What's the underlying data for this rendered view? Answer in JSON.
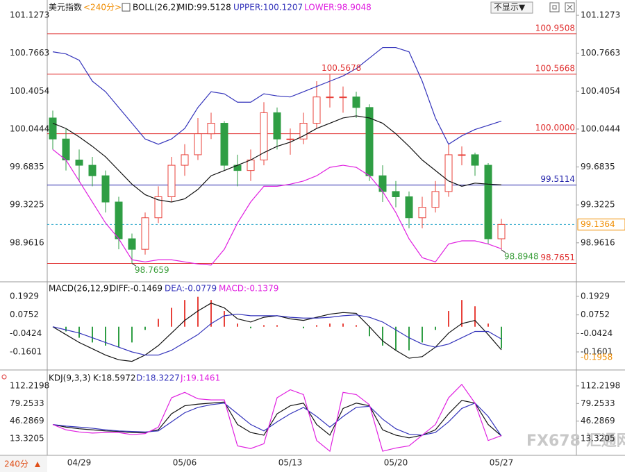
{
  "ui": {
    "button": "不显示▼",
    "period_tab": "240分",
    "watermark": "FX678 汇通网"
  },
  "chart_data": [
    {
      "type": "candlestick",
      "title": "美元指数",
      "period": "<240分>",
      "indicator": "BOLL(26,2)",
      "categories": [
        null,
        null,
        "04/29",
        null,
        null,
        null,
        null,
        null,
        null,
        null,
        "05/06",
        null,
        null,
        null,
        null,
        null,
        null,
        null,
        "05/13",
        null,
        null,
        null,
        null,
        null,
        null,
        null,
        "05/20",
        null,
        null,
        null,
        null,
        null,
        null,
        null,
        "05/27"
      ],
      "open": [
        100.15,
        99.95,
        99.75,
        99.7,
        99.6,
        99.35,
        99.0,
        98.9,
        99.2,
        99.4,
        99.7,
        99.8,
        100.0,
        100.1,
        99.7,
        99.65,
        99.75,
        100.2,
        99.95,
        99.95,
        100.1,
        100.35,
        100.35,
        100.35,
        100.25,
        99.6,
        99.45,
        99.4,
        99.2,
        99.3,
        99.45,
        99.8,
        99.8,
        99.7,
        99.0
      ],
      "high": [
        100.22,
        100.05,
        99.85,
        99.78,
        99.65,
        99.4,
        99.05,
        99.25,
        99.5,
        99.78,
        99.9,
        100.15,
        100.2,
        100.12,
        99.8,
        99.85,
        100.3,
        100.25,
        100.05,
        100.2,
        100.5,
        100.5678,
        100.45,
        100.4,
        100.28,
        99.7,
        99.55,
        99.45,
        99.4,
        99.55,
        99.9,
        99.88,
        99.82,
        99.72,
        99.19
      ],
      "low": [
        99.85,
        99.65,
        99.55,
        99.5,
        99.25,
        98.9,
        98.7659,
        98.85,
        99.15,
        99.35,
        99.6,
        99.75,
        99.95,
        99.65,
        99.5,
        99.55,
        99.7,
        99.85,
        99.8,
        99.9,
        100.05,
        100.25,
        100.2,
        100.15,
        99.55,
        99.35,
        99.3,
        99.1,
        99.1,
        99.25,
        99.4,
        99.7,
        99.6,
        98.95,
        98.8948
      ],
      "close": [
        99.95,
        99.75,
        99.7,
        99.6,
        99.35,
        99.0,
        98.9,
        99.2,
        99.4,
        99.7,
        99.8,
        100.0,
        100.1,
        99.7,
        99.65,
        99.75,
        100.2,
        99.95,
        99.95,
        100.1,
        100.35,
        100.35,
        100.35,
        100.25,
        99.6,
        99.45,
        99.4,
        99.2,
        99.3,
        99.45,
        99.8,
        99.8,
        99.7,
        99.0,
        99.1364
      ],
      "up_color": "#e8413a",
      "down_color": "#2f9e44",
      "series": [
        {
          "name": "MID:99.5128",
          "color": "#111111",
          "values": [
            100.1,
            100.05,
            99.97,
            99.88,
            99.78,
            99.65,
            99.52,
            99.42,
            99.37,
            99.35,
            99.38,
            99.47,
            99.6,
            99.65,
            99.7,
            99.75,
            99.82,
            99.88,
            99.92,
            99.98,
            100.05,
            100.1,
            100.15,
            100.17,
            100.15,
            100.1,
            100.0,
            99.88,
            99.75,
            99.65,
            99.55,
            99.5,
            99.53,
            99.52,
            99.5128
          ]
        },
        {
          "name": "UPPER:100.1207",
          "color": "#3333bb",
          "values": [
            100.78,
            100.76,
            100.7,
            100.5,
            100.4,
            100.25,
            100.1,
            99.95,
            99.9,
            99.95,
            100.05,
            100.25,
            100.4,
            100.38,
            100.3,
            100.3,
            100.38,
            100.36,
            100.35,
            100.4,
            100.45,
            100.5,
            100.55,
            100.62,
            100.72,
            100.82,
            100.82,
            100.78,
            100.5,
            100.15,
            99.9,
            99.98,
            100.04,
            100.08,
            100.1207
          ]
        },
        {
          "name": "LOWER:98.9048",
          "color": "#e020e0",
          "values": [
            99.85,
            99.75,
            99.55,
            99.35,
            99.15,
            99.0,
            98.8,
            98.78,
            98.8,
            98.8,
            98.78,
            98.76,
            98.75,
            98.9,
            99.15,
            99.35,
            99.5,
            99.5,
            99.52,
            99.55,
            99.6,
            99.68,
            99.7,
            99.68,
            99.6,
            99.45,
            99.25,
            99.0,
            98.82,
            98.78,
            98.95,
            98.98,
            98.98,
            98.95,
            98.9048
          ]
        }
      ],
      "ylim": [
        98.597,
        101.207
      ],
      "yticks": [
        101.1273,
        100.7663,
        100.4054,
        100.0444,
        99.6835,
        99.3225,
        98.9616
      ],
      "hlines": {
        "values": [
          100.9508,
          100.5668,
          100,
          99.5114,
          98.7651
        ],
        "value_labels": [
          "100.9508",
          "100.5668",
          "100.0000",
          "99.5114",
          "98.7651"
        ],
        "colors": [
          "#e03030",
          "#e03030",
          "#e03030",
          "#2222aa",
          "#e03030"
        ]
      },
      "last_price": 99.1364,
      "last_price_color": "#f08c00",
      "annotations": [
        100.5678,
        98.7659,
        98.8948
      ]
    },
    {
      "type": "macd",
      "title": "MACD(26,12,9)",
      "series": [
        {
          "name": "DIFF:-0.1469",
          "color": "#111111",
          "values": [
            0.0,
            -0.05,
            -0.1,
            -0.14,
            -0.18,
            -0.21,
            -0.22,
            -0.18,
            -0.12,
            -0.04,
            0.04,
            0.1,
            0.15,
            0.12,
            0.05,
            0.03,
            0.06,
            0.07,
            0.05,
            0.04,
            0.06,
            0.08,
            0.09,
            0.085,
            0.0,
            -0.09,
            -0.15,
            -0.2,
            -0.19,
            -0.13,
            -0.04,
            0.02,
            0.04,
            -0.05,
            -0.1469
          ]
        },
        {
          "name": "DEA:-0.0779",
          "color": "#3333bb",
          "values": [
            0.0,
            -0.02,
            -0.04,
            -0.07,
            -0.1,
            -0.13,
            -0.16,
            -0.18,
            -0.18,
            -0.15,
            -0.1,
            -0.05,
            0.02,
            0.07,
            0.08,
            0.07,
            0.07,
            0.07,
            0.06,
            0.055,
            0.055,
            0.06,
            0.07,
            0.075,
            0.06,
            0.03,
            -0.02,
            -0.07,
            -0.11,
            -0.13,
            -0.11,
            -0.07,
            -0.03,
            -0.03,
            -0.0779
          ]
        }
      ],
      "histogram": {
        "name": "MACD:-0.1379",
        "up_color": "#e8413a",
        "down_color": "#2f9e44",
        "values": [
          0,
          -0.03,
          -0.07,
          -0.1,
          -0.12,
          -0.13,
          -0.1,
          -0.02,
          0.05,
          0.12,
          0.17,
          0.19,
          0.17,
          0.1,
          0.02,
          -0.01,
          0.01,
          0.01,
          0,
          -0.01,
          0.01,
          0.02,
          0.02,
          0.01,
          -0.06,
          -0.12,
          -0.15,
          -0.15,
          -0.1,
          -0.02,
          0.1,
          0.17,
          0.13,
          0.02,
          -0.1379
        ]
      },
      "ylim": [
        -0.2615,
        0.2678
      ],
      "yticks": [
        0.1929,
        0.0752,
        -0.0424,
        -0.1601
      ],
      "cursor_value": -0.1958,
      "cursor_color": "#f08c00"
    },
    {
      "type": "kdj",
      "title": "KDJ(9,3,3)",
      "series": [
        {
          "name": "K:18.5972",
          "color": "#111111",
          "values": [
            40,
            35,
            32,
            30,
            28,
            27,
            25,
            25,
            30,
            60,
            75,
            78,
            80,
            82,
            40,
            25,
            20,
            60,
            75,
            80,
            40,
            20,
            70,
            80,
            75,
            30,
            20,
            15,
            20,
            30,
            60,
            85,
            80,
            40,
            18.5972
          ]
        },
        {
          "name": "D:18.3227",
          "color": "#3333bb",
          "values": [
            40,
            37,
            35,
            33,
            30,
            28,
            27,
            26,
            28,
            45,
            62,
            72,
            77,
            80,
            60,
            40,
            28,
            45,
            60,
            72,
            55,
            35,
            55,
            72,
            74,
            50,
            32,
            22,
            20,
            25,
            45,
            70,
            80,
            55,
            18.3227
          ]
        },
        {
          "name": "J:19.1461",
          "color": "#e020e0",
          "values": [
            40,
            30,
            26,
            24,
            25,
            25,
            21,
            23,
            35,
            90,
            100,
            88,
            86,
            86,
            0,
            -5,
            4,
            90,
            105,
            96,
            10,
            -10,
            100,
            96,
            77,
            -10,
            -4,
            0,
            20,
            40,
            90,
            115,
            80,
            10,
            19.1461
          ]
        }
      ],
      "ylim": [
        -16.41,
        136.78
      ],
      "yticks": [
        112.2198,
        79.2533,
        46.2869,
        13.3205
      ]
    }
  ]
}
